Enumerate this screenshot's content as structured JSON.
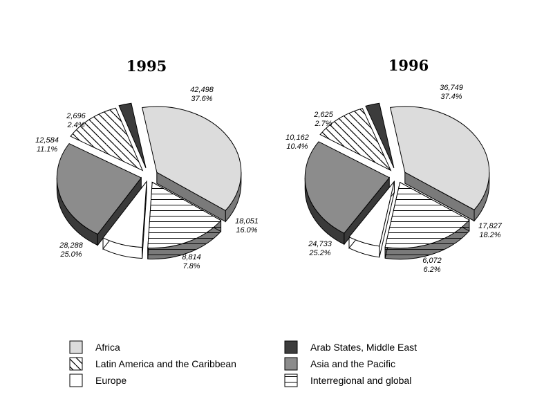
{
  "chart_data": [
    {
      "type": "pie",
      "title": "1995",
      "slices": [
        {
          "category": "Africa",
          "value": 42498,
          "value_label": "42,498",
          "percent_label": "37.6%"
        },
        {
          "category": "Interregional and global",
          "value": 18051,
          "value_label": "18,051",
          "percent_label": "16.0%"
        },
        {
          "category": "Europe",
          "value": 8814,
          "value_label": "8,814",
          "percent_label": "7.8%"
        },
        {
          "category": "Asia and the Pacific",
          "value": 28288,
          "value_label": "28,288",
          "percent_label": "25.0%"
        },
        {
          "category": "Latin America and the Caribbean",
          "value": 12584,
          "value_label": "12,584",
          "percent_label": "11.1%"
        },
        {
          "category": "Arab States, Middle East",
          "value": 2696,
          "value_label": "2,696",
          "percent_label": "2.4%"
        }
      ]
    },
    {
      "type": "pie",
      "title": "1996",
      "slices": [
        {
          "category": "Africa",
          "value": 36749,
          "value_label": "36,749",
          "percent_label": "37.4%"
        },
        {
          "category": "Interregional and global",
          "value": 17827,
          "value_label": "17,827",
          "percent_label": "18.2%"
        },
        {
          "category": "Europe",
          "value": 6072,
          "value_label": "6,072",
          "percent_label": "6.2%"
        },
        {
          "category": "Asia and the Pacific",
          "value": 24733,
          "value_label": "24,733",
          "percent_label": "25.2%"
        },
        {
          "category": "Latin America and the Caribbean",
          "value": 10162,
          "value_label": "10,162",
          "percent_label": "10.4%"
        },
        {
          "category": "Arab States, Middle East",
          "value": 2625,
          "value_label": "2,625",
          "percent_label": "2.7%"
        }
      ]
    }
  ],
  "legend": [
    {
      "label": "Africa",
      "pattern": "light-gray",
      "color": "#dcdcdc"
    },
    {
      "label": "Latin America and the Caribbean",
      "pattern": "diagonal-hatch",
      "color": "#ffffff"
    },
    {
      "label": "Europe",
      "pattern": "white",
      "color": "#ffffff"
    },
    {
      "label": "Arab States, Middle East",
      "pattern": "dark-gray",
      "color": "#3c3c3c"
    },
    {
      "label": "Asia and the Pacific",
      "pattern": "medium-gray",
      "color": "#8c8c8c"
    },
    {
      "label": "Interregional and global",
      "pattern": "horizontal-lines",
      "color": "#ffffff"
    }
  ]
}
